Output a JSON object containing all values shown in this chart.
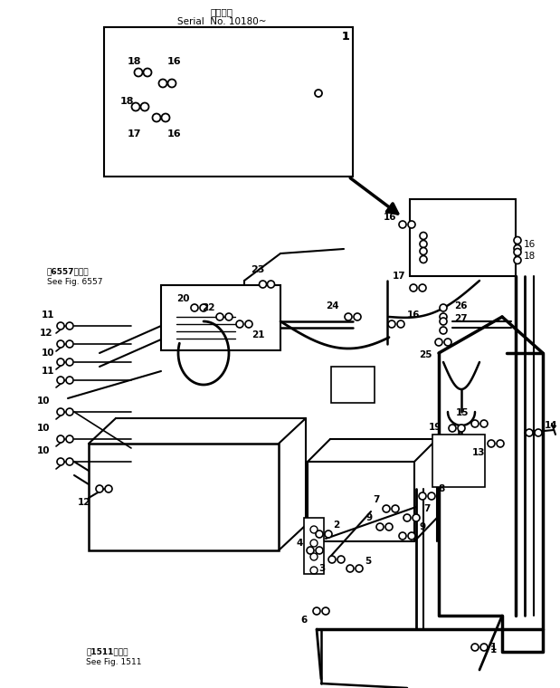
{
  "bg_color": "#ffffff",
  "line_color": "#000000",
  "fig_width": 6.19,
  "fig_height": 7.6,
  "dpi": 100,
  "title_jp": "適用号機",
  "title_serial": "Serial  No. 10180~",
  "ref1_jp": "第6557図参照",
  "ref1_en": "See Fig. 6557",
  "ref2_jp": "第1511図参照",
  "ref2_en": "See Fig. 1511"
}
